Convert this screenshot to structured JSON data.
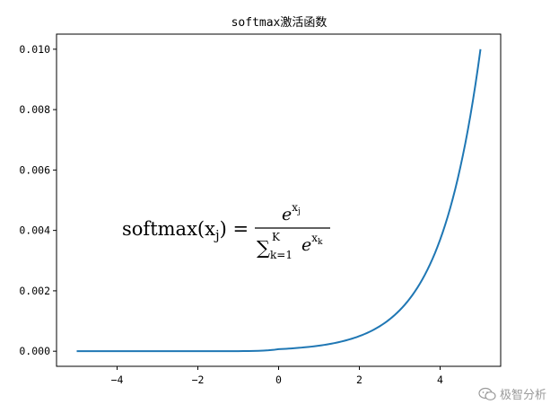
{
  "chart_data": {
    "type": "line",
    "title": "softmax激活函数",
    "xlabel": "",
    "ylabel": "",
    "xlim": [
      -5.5,
      5.5
    ],
    "ylim": [
      -0.0005,
      0.0105
    ],
    "xticks": [
      -4,
      -2,
      0,
      2,
      4
    ],
    "yticks": [
      0.0,
      0.002,
      0.004,
      0.006,
      0.008,
      0.01
    ],
    "xtick_labels": [
      "−4",
      "−2",
      "0",
      "2",
      "4"
    ],
    "ytick_labels": [
      "0.000",
      "0.002",
      "0.004",
      "0.006",
      "0.008",
      "0.010"
    ],
    "grid": false,
    "series": [
      {
        "color": "#1f77b4",
        "x": [
          -5.0,
          -4.0,
          -3.0,
          -2.0,
          -1.0,
          0.0,
          0.5,
          1.0,
          1.5,
          2.0,
          2.5,
          3.0,
          3.5,
          4.0,
          4.5,
          5.0
        ],
        "y": [
          0.0,
          1e-07,
          3e-07,
          9e-07,
          2.5e-06,
          6.76e-05,
          0.0001115,
          0.0001838,
          0.0003031,
          0.0004997,
          0.0008238,
          0.0013582,
          0.0022392,
          0.0036918,
          0.0060868,
          0.01
        ]
      }
    ],
    "annotation": {
      "lhs": "softmax(x",
      "lhs_sub": "j",
      "lhs_close": ") =",
      "num_base": "e",
      "num_sup": "x",
      "num_sup_sub": "j",
      "den_sum": "∑",
      "den_sub": "k=1",
      "den_sup": "K",
      "den_base": "e",
      "den_exp": "x",
      "den_exp_sub": "k"
    }
  },
  "watermark": {
    "text": "极智分析",
    "icon": "wechat-icon"
  }
}
